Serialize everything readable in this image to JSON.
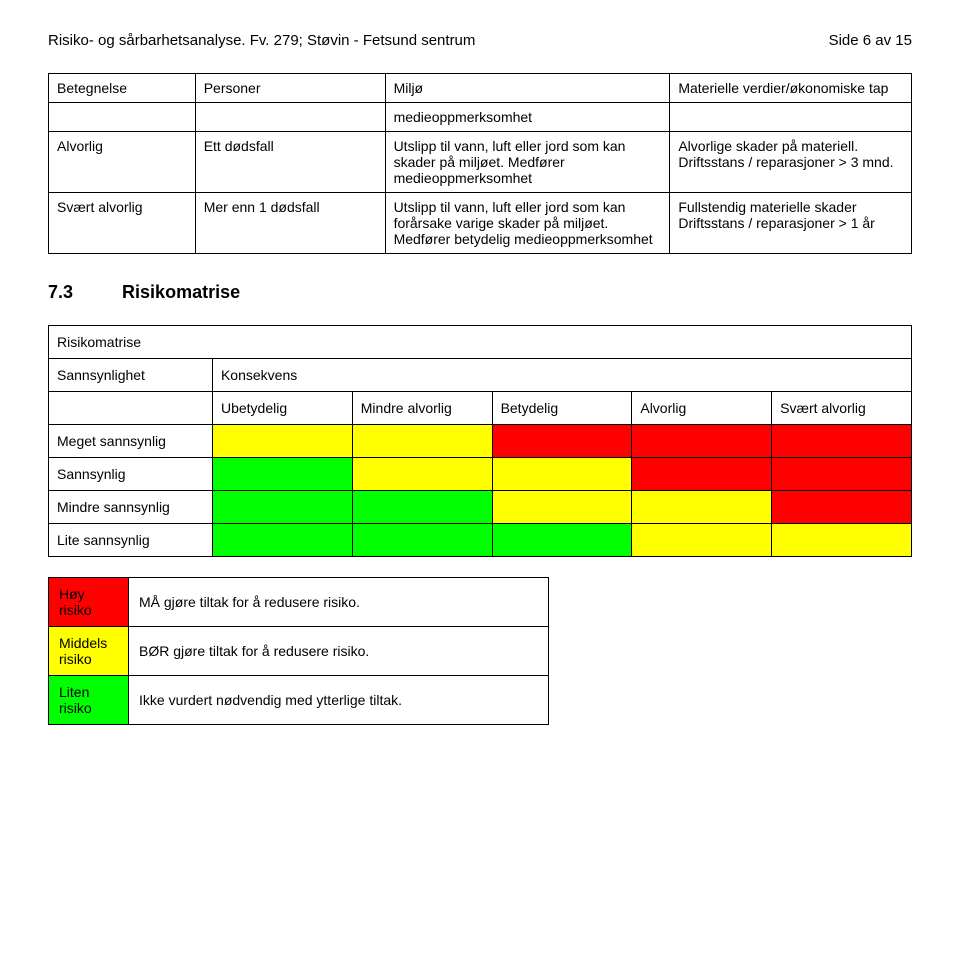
{
  "colors": {
    "red": "#ff0000",
    "yellow": "#ffff00",
    "green": "#00ff00",
    "white": "#ffffff"
  },
  "header": {
    "title": "Risiko- og sårbarhetsanalyse. Fv. 279; Støvin - Fetsund sentrum",
    "side_label": "Side",
    "page_num": "6 av 15"
  },
  "main_table": {
    "head": {
      "c0": "Betegnelse",
      "c1": "Personer",
      "c2": "Miljø",
      "c3": "Materielle verdier/økonomiske tap"
    },
    "row_blankmiljo": "medieoppmerksomhet",
    "row1": {
      "c0": "Alvorlig",
      "c1": "Ett dødsfall",
      "c2": "Utslipp til vann, luft eller jord som kan skader på miljøet. Medfører medieoppmerksomhet",
      "c3": "Alvorlige skader på materiell. Driftsstans / reparasjoner > 3 mnd."
    },
    "row2": {
      "c0": "Svært alvorlig",
      "c1": "Mer enn 1 dødsfall",
      "c2": "Utslipp til vann, luft eller jord som kan forårsake varige skader på miljøet. Medfører betydelig medieoppmerksomhet",
      "c3": "Fullstendig materielle skader Driftsstans / reparasjoner > 1 år"
    }
  },
  "section": {
    "num": "7.3",
    "title": "Risikomatrise"
  },
  "matrix": {
    "title": "Risikomatrise",
    "row_label": "Sannsynlighet",
    "conseq_label": "Konsekvens",
    "cols": [
      "Ubetydelig",
      "Mindre alvorlig",
      "Betydelig",
      "Alvorlig",
      "Svært alvorlig"
    ],
    "rows": [
      "Meget sannsynlig",
      "Sannsynlig",
      "Mindre sannsynlig",
      "Lite sannsynlig"
    ],
    "cells": [
      [
        "yellow",
        "yellow",
        "red",
        "red",
        "red"
      ],
      [
        "green",
        "yellow",
        "yellow",
        "red",
        "red"
      ],
      [
        "green",
        "green",
        "yellow",
        "yellow",
        "red"
      ],
      [
        "green",
        "green",
        "green",
        "yellow",
        "yellow"
      ]
    ]
  },
  "legend": {
    "rows": [
      {
        "color": "red",
        "label": "Høy risiko",
        "desc": "MÅ gjøre tiltak for å redusere risiko."
      },
      {
        "color": "yellow",
        "label": "Middels risiko",
        "desc": "BØR gjøre tiltak for å redusere risiko."
      },
      {
        "color": "green",
        "label": "Liten risiko",
        "desc": "Ikke vurdert nødvendig med ytterlige tiltak."
      }
    ]
  }
}
